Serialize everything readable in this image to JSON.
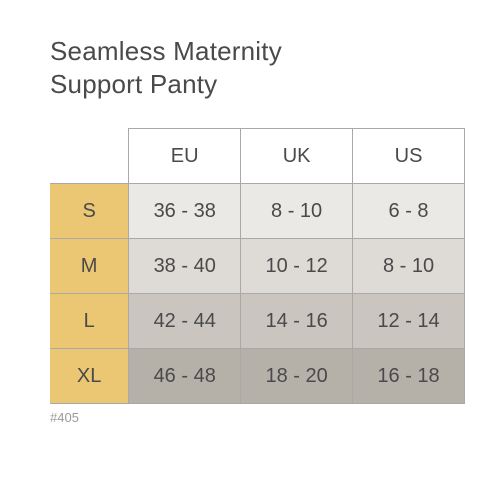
{
  "title": "Seamless Maternity\nSupport Panty",
  "footer": "#405",
  "table": {
    "border_color": "#a9a9a9",
    "columns": [
      "EU",
      "UK",
      "US"
    ],
    "col_widths_pct": [
      19,
      27,
      27,
      27
    ],
    "header_bg": "#ffffff",
    "size_label_bg": "#ebc773",
    "row_bgs": [
      "#ebe9e6",
      "#dedbd6",
      "#cac6bf",
      "#b6b1a8"
    ],
    "rows": [
      {
        "size": "S",
        "values": [
          "36 - 38",
          "8 - 10",
          "6 - 8"
        ]
      },
      {
        "size": "M",
        "values": [
          "38 - 40",
          "10 - 12",
          "8 - 10"
        ]
      },
      {
        "size": "L",
        "values": [
          "42 - 44",
          "14 - 16",
          "12 - 14"
        ]
      },
      {
        "size": "XL",
        "values": [
          "46 - 48",
          "18 - 20",
          "16 - 18"
        ]
      }
    ]
  }
}
